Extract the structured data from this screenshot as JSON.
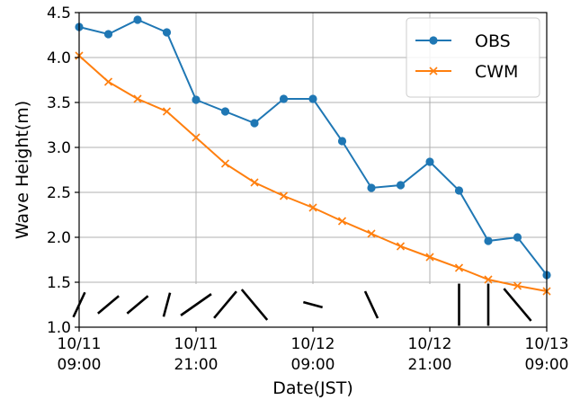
{
  "chart_data": {
    "type": "line",
    "title": "",
    "xlabel": "Date(JST)",
    "ylabel": "Wave Height(m)",
    "ylim": [
      1.0,
      4.5
    ],
    "yticks": [
      "1.0",
      "1.5",
      "2.0",
      "2.5",
      "3.0",
      "3.5",
      "4.0",
      "4.5"
    ],
    "xlim": [
      "10/11 09:00",
      "10/13 09:00"
    ],
    "xticks": [
      {
        "date": "10/11",
        "time": "09:00",
        "hours": 0
      },
      {
        "date": "10/11",
        "time": "21:00",
        "hours": 12
      },
      {
        "date": "10/12",
        "time": "09:00",
        "hours": 24
      },
      {
        "date": "10/12",
        "time": "21:00",
        "hours": 36
      },
      {
        "date": "10/13",
        "time": "09:00",
        "hours": 48
      }
    ],
    "grid": true,
    "legend_position": "top-right",
    "x_hours": [
      0,
      3,
      6,
      9,
      12,
      15,
      18,
      21,
      24,
      27,
      30,
      33,
      36,
      39,
      42,
      45,
      48
    ],
    "series": [
      {
        "name": "OBS",
        "color": "#1f77b4",
        "marker": "circle",
        "values": [
          4.34,
          4.26,
          4.42,
          4.28,
          3.53,
          3.4,
          3.27,
          3.54,
          3.54,
          3.07,
          2.55,
          2.58,
          2.84,
          2.52,
          1.96,
          2.0,
          1.58
        ]
      },
      {
        "name": "CWM",
        "color": "#ff7f0e",
        "marker": "x",
        "values": [
          4.02,
          3.73,
          3.54,
          3.4,
          3.11,
          2.82,
          2.61,
          2.46,
          2.33,
          2.18,
          2.04,
          1.9,
          1.78,
          1.66,
          1.53,
          1.46,
          1.4
        ]
      }
    ],
    "wind_barbs": [
      {
        "hours": 0,
        "angle": -25,
        "len": 0.55
      },
      {
        "hours": 3,
        "angle": -50,
        "len": 0.55
      },
      {
        "hours": 6,
        "angle": -50,
        "len": 0.55
      },
      {
        "hours": 9,
        "angle": -15,
        "len": 0.5
      },
      {
        "hours": 12,
        "angle": -55,
        "len": 0.75
      },
      {
        "hours": 15,
        "angle": -40,
        "len": 0.7
      },
      {
        "hours": 18,
        "angle": 40,
        "len": 0.8
      },
      {
        "hours": 24,
        "angle": 75,
        "len": 0.4
      },
      {
        "hours": 30,
        "angle": 25,
        "len": 0.6
      },
      {
        "hours": 39,
        "angle": 0,
        "len": 0.85
      },
      {
        "hours": 42,
        "angle": 0,
        "len": 0.85
      },
      {
        "hours": 45,
        "angle": 40,
        "len": 0.85
      }
    ]
  }
}
